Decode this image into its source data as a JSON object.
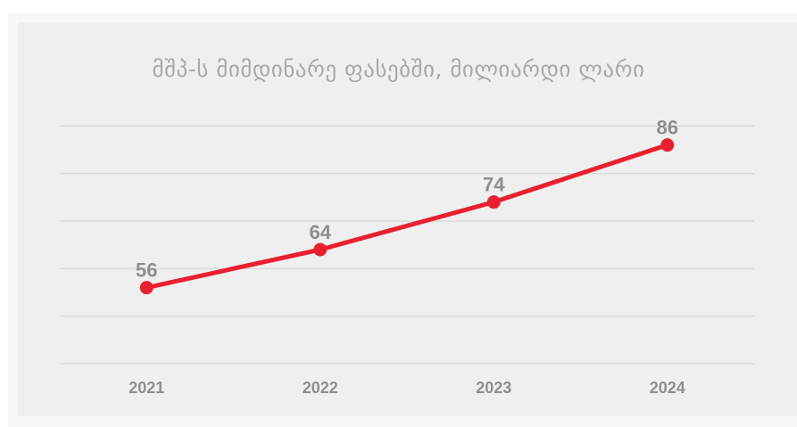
{
  "chart_data": {
    "type": "line",
    "title": "მშპ-ს მიმდინარე ფასებში, მილიარდი ლარი",
    "categories": [
      "2021",
      "2022",
      "2023",
      "2024"
    ],
    "series": [
      {
        "values": [
          56,
          64,
          74,
          86
        ]
      }
    ],
    "data_labels": [
      "56",
      "64",
      "74",
      "86"
    ],
    "ylim": [
      40,
      100
    ],
    "grid": true,
    "legend": "none",
    "colors": {
      "line": "#e8202f",
      "gridline": "#d6d6d6",
      "text": "#8e8e8e",
      "title": "#a9a9a9",
      "panel": "#efefef"
    }
  }
}
